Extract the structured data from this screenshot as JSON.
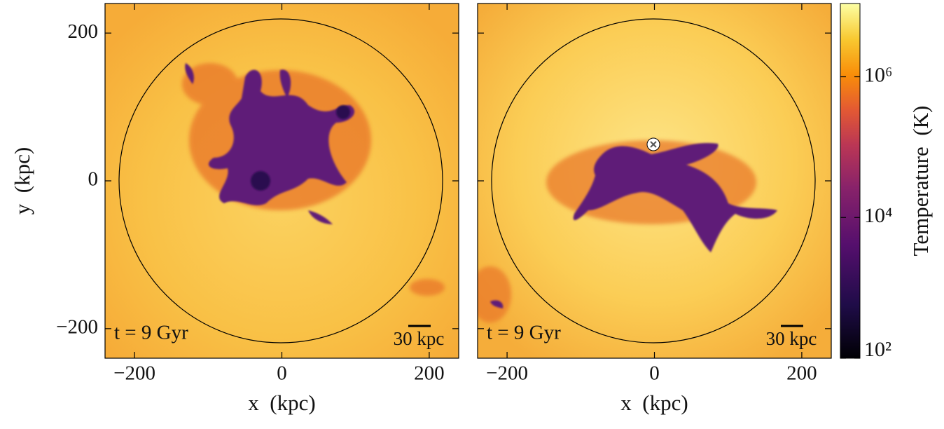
{
  "chart_data": [
    {
      "type": "heatmap",
      "xlabel": "x  (kpc)",
      "ylabel": "y  (kpc)",
      "xlim": [
        -240,
        240
      ],
      "ylim": [
        -240,
        240
      ],
      "xticks": [
        {
          "value": -200,
          "label": "−200"
        },
        0,
        200
      ],
      "yticks": [
        {
          "value": -200,
          "label": "−200"
        },
        0,
        200
      ],
      "ytick_labels": true,
      "annotation": "t = 9 Gyr",
      "scale_label": "30 kpc"
    },
    {
      "type": "heatmap",
      "xlabel": "x  (kpc)",
      "xlim": [
        -240,
        240
      ],
      "ylim": [
        -240,
        240
      ],
      "xticks": [
        {
          "value": -200,
          "label": "−200"
        },
        0,
        200
      ],
      "yticks": [
        -200,
        0,
        200
      ],
      "ytick_labels": false,
      "annotation": "t = 9 Gyr",
      "scale_label": "30 kpc"
    },
    {
      "type": "colorbar",
      "label": "Temperature  (K)",
      "log_scale": true,
      "clim": [
        100,
        11000000
      ],
      "ticks": [
        {
          "value": 100,
          "label": "10²"
        },
        {
          "value": 10000,
          "label": "10⁴"
        },
        {
          "value": 1000000,
          "label": "10⁶"
        }
      ],
      "colormap": "inferno"
    }
  ]
}
